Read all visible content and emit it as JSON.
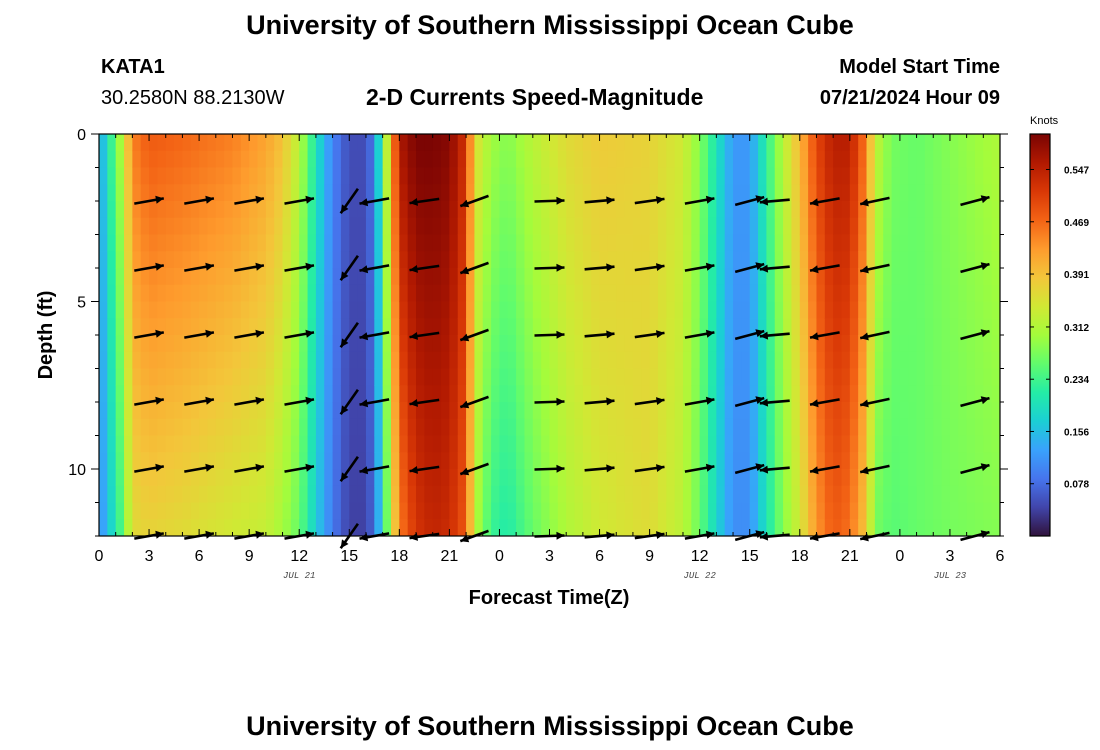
{
  "header": {
    "title": "University of Southern Mississippi Ocean Cube",
    "station_id": "KATA1",
    "station_coords": "30.2580N  88.2130W",
    "subtitle": "2-D Currents Speed-Magnitude",
    "model_start_label": "Model Start Time",
    "model_start_value": "07/21/2024 Hour 09"
  },
  "footer": {
    "title": "University of Southern Mississippi Ocean Cube"
  },
  "colors": {
    "scale": [
      "#30123b",
      "#4145ab",
      "#4675ed",
      "#39a2fc",
      "#1bcfd4",
      "#24eca6",
      "#61fc6c",
      "#a4fc3b",
      "#d1e834",
      "#f3c63a",
      "#fe9b2d",
      "#f36315",
      "#d93806",
      "#b11901",
      "#7a0403"
    ],
    "arrow": "#000000",
    "frame": "#000000"
  },
  "chart_data": {
    "type": "heatmap",
    "title": "2-D Currents Speed-Magnitude",
    "xlabel": "Forecast Time(Z)",
    "ylabel": "Depth (ft)",
    "x_range_hours": [
      0,
      54
    ],
    "y_range_ft": [
      0,
      12
    ],
    "x_ticks": [
      {
        "hour": 0,
        "label": "0"
      },
      {
        "hour": 3,
        "label": "3"
      },
      {
        "hour": 6,
        "label": "6"
      },
      {
        "hour": 9,
        "label": "9"
      },
      {
        "hour": 12,
        "label": "12"
      },
      {
        "hour": 15,
        "label": "15"
      },
      {
        "hour": 18,
        "label": "18"
      },
      {
        "hour": 21,
        "label": "21"
      },
      {
        "hour": 24,
        "label": "0"
      },
      {
        "hour": 27,
        "label": "3"
      },
      {
        "hour": 30,
        "label": "6"
      },
      {
        "hour": 33,
        "label": "9"
      },
      {
        "hour": 36,
        "label": "12"
      },
      {
        "hour": 39,
        "label": "15"
      },
      {
        "hour": 42,
        "label": "18"
      },
      {
        "hour": 45,
        "label": "21"
      },
      {
        "hour": 48,
        "label": "0"
      },
      {
        "hour": 51,
        "label": "3"
      },
      {
        "hour": 54,
        "label": "6"
      }
    ],
    "date_labels": [
      {
        "hour": 12,
        "label": "JUL 21"
      },
      {
        "hour": 36,
        "label": "JUL 22"
      },
      {
        "hour": 51,
        "label": "JUL 23"
      }
    ],
    "y_ticks": [
      {
        "depth": 0,
        "label": "0"
      },
      {
        "depth": 5,
        "label": "5"
      },
      {
        "depth": 10,
        "label": "10"
      }
    ],
    "colorbar": {
      "unit": "Knots",
      "range": [
        0,
        0.6
      ],
      "ticks": [
        "0.547",
        "0.469",
        "0.391",
        "0.312",
        "0.234",
        "0.156",
        "0.078"
      ]
    },
    "speed_profile": {
      "hours": [
        0,
        0.5,
        1,
        1.5,
        2,
        3,
        5,
        8,
        10,
        11,
        12,
        13,
        14,
        15,
        16,
        16.5,
        17,
        18,
        19,
        20,
        21,
        22,
        22.5,
        23.5,
        24.5,
        26,
        28,
        30,
        33,
        35,
        36,
        37,
        38,
        39,
        40,
        41,
        42,
        43,
        44,
        45,
        46,
        46.5,
        47.5,
        49,
        51,
        54
      ],
      "surface": [
        0.12,
        0.2,
        0.26,
        0.34,
        0.45,
        0.48,
        0.47,
        0.45,
        0.42,
        0.39,
        0.32,
        0.2,
        0.1,
        0.05,
        0.05,
        0.1,
        0.25,
        0.56,
        0.6,
        0.6,
        0.59,
        0.52,
        0.36,
        0.3,
        0.28,
        0.32,
        0.36,
        0.38,
        0.37,
        0.34,
        0.28,
        0.2,
        0.12,
        0.12,
        0.22,
        0.32,
        0.4,
        0.5,
        0.55,
        0.55,
        0.45,
        0.33,
        0.27,
        0.26,
        0.28,
        0.31
      ],
      "bottom": [
        0.1,
        0.16,
        0.2,
        0.27,
        0.36,
        0.37,
        0.36,
        0.34,
        0.33,
        0.3,
        0.26,
        0.17,
        0.09,
        0.04,
        0.04,
        0.08,
        0.2,
        0.45,
        0.52,
        0.54,
        0.53,
        0.48,
        0.32,
        0.23,
        0.21,
        0.26,
        0.31,
        0.34,
        0.36,
        0.32,
        0.26,
        0.18,
        0.11,
        0.11,
        0.2,
        0.28,
        0.34,
        0.43,
        0.48,
        0.46,
        0.38,
        0.27,
        0.25,
        0.26,
        0.27,
        0.28
      ]
    },
    "vectors": {
      "depths": [
        2,
        4,
        6,
        8,
        10,
        12
      ],
      "columns": [
        {
          "hour": 3,
          "angle_deg": 10
        },
        {
          "hour": 6,
          "angle_deg": 10
        },
        {
          "hour": 9,
          "angle_deg": 10
        },
        {
          "hour": 12,
          "angle_deg": 10
        },
        {
          "hour": 15,
          "angle_deg": 235
        },
        {
          "hour": 16.5,
          "angle_deg": 190
        },
        {
          "hour": 19.5,
          "angle_deg": 188
        },
        {
          "hour": 22.5,
          "angle_deg": 200
        },
        {
          "hour": 27,
          "angle_deg": 2
        },
        {
          "hour": 30,
          "angle_deg": 5
        },
        {
          "hour": 33,
          "angle_deg": 8
        },
        {
          "hour": 36,
          "angle_deg": 10
        },
        {
          "hour": 39,
          "angle_deg": 15
        },
        {
          "hour": 40.5,
          "angle_deg": 185
        },
        {
          "hour": 43.5,
          "angle_deg": 190
        },
        {
          "hour": 46.5,
          "angle_deg": 192
        },
        {
          "hour": 52.5,
          "angle_deg": 15
        }
      ]
    }
  }
}
